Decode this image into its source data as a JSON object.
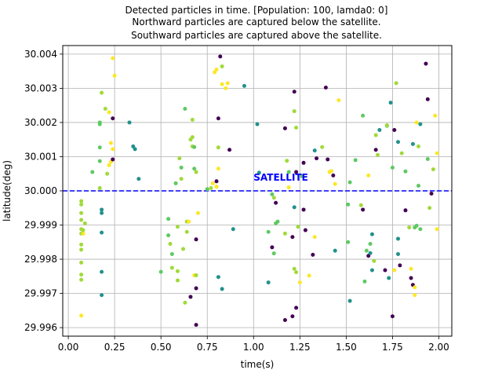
{
  "chart_data": {
    "type": "scatter",
    "title_lines": [
      "Detected particles in time. [Population: 100, lamda0: 0]",
      "Northward particles are captured below the satellite.",
      "Southward particles are captured above the satellite."
    ],
    "xlabel": "time(s)",
    "ylabel": "latitude(deg)",
    "xlim": [
      -0.03,
      2.07
    ],
    "ylim": [
      29.99575,
      30.00425
    ],
    "xticks": [
      "0.00",
      "0.25",
      "0.50",
      "0.75",
      "1.00",
      "1.25",
      "1.50",
      "1.75",
      "2.00"
    ],
    "yticks": [
      "29.996",
      "29.997",
      "29.998",
      "29.999",
      "30.000",
      "30.001",
      "30.002",
      "30.003",
      "30.004"
    ],
    "grid": true,
    "reference_line": {
      "y": 30.0,
      "label": "SATELLITE",
      "label_x": 1.0,
      "label_y": 30.0003,
      "color": "#0000ff",
      "style": "dashed"
    },
    "colormap": [
      "#440154",
      "#21918c",
      "#5ec962",
      "#a0da39",
      "#fde725"
    ],
    "points": [
      [
        0.07,
        29.99635,
        4
      ],
      [
        0.07,
        29.9974,
        3
      ],
      [
        0.07,
        29.99755,
        3
      ],
      [
        0.07,
        29.9979,
        3
      ],
      [
        0.07,
        29.99828,
        3
      ],
      [
        0.07,
        29.99843,
        3
      ],
      [
        0.07,
        29.99875,
        3
      ],
      [
        0.07,
        29.99888,
        3
      ],
      [
        0.07,
        29.99915,
        3
      ],
      [
        0.07,
        29.99935,
        3
      ],
      [
        0.07,
        29.9996,
        3
      ],
      [
        0.07,
        29.9997,
        3
      ],
      [
        0.08,
        29.99875,
        4
      ],
      [
        0.08,
        29.99885,
        3
      ],
      [
        0.09,
        29.99905,
        3
      ],
      [
        0.13,
        30.00055,
        2
      ],
      [
        0.17,
        30.00008,
        3
      ],
      [
        0.17,
        30.00087,
        2
      ],
      [
        0.17,
        30.00127,
        2
      ],
      [
        0.17,
        30.00195,
        2
      ],
      [
        0.17,
        30.002,
        2
      ],
      [
        0.18,
        30.00287,
        3
      ],
      [
        0.18,
        29.99945,
        1
      ],
      [
        0.18,
        29.99935,
        1
      ],
      [
        0.18,
        29.99878,
        1
      ],
      [
        0.18,
        29.99763,
        1
      ],
      [
        0.18,
        29.99695,
        1
      ],
      [
        0.2,
        30.0024,
        3
      ],
      [
        0.21,
        30.0005,
        3
      ],
      [
        0.22,
        30.0023,
        4
      ],
      [
        0.22,
        30.00075,
        4
      ],
      [
        0.23,
        30.00085,
        4
      ],
      [
        0.23,
        30.0014,
        4
      ],
      [
        0.24,
        30.00212,
        0
      ],
      [
        0.24,
        30.00122,
        4
      ],
      [
        0.24,
        30.00092,
        0
      ],
      [
        0.24,
        30.00388,
        4
      ],
      [
        0.25,
        30.00337,
        4
      ],
      [
        0.33,
        30.002,
        1
      ],
      [
        0.35,
        30.0013,
        1
      ],
      [
        0.36,
        30.00122,
        1
      ],
      [
        0.38,
        30.00035,
        1
      ],
      [
        0.5,
        29.99763,
        2
      ],
      [
        0.54,
        29.99918,
        2
      ],
      [
        0.54,
        29.9987,
        2
      ],
      [
        0.55,
        29.99845,
        3
      ],
      [
        0.56,
        29.99815,
        2
      ],
      [
        0.56,
        29.99775,
        3
      ],
      [
        0.58,
        30.00022,
        2
      ],
      [
        0.59,
        29.99895,
        3
      ],
      [
        0.59,
        29.99765,
        3
      ],
      [
        0.59,
        29.99738,
        3
      ],
      [
        0.6,
        30.00095,
        3
      ],
      [
        0.61,
        30.00068,
        2
      ],
      [
        0.61,
        30.00035,
        3
      ],
      [
        0.62,
        29.9983,
        3
      ],
      [
        0.63,
        29.99673,
        3
      ],
      [
        0.63,
        30.0024,
        2
      ],
      [
        0.64,
        29.9988,
        3
      ],
      [
        0.64,
        29.9991,
        3
      ],
      [
        0.65,
        29.9991,
        4
      ],
      [
        0.66,
        29.9969,
        0
      ],
      [
        0.66,
        30.0015,
        3
      ],
      [
        0.67,
        30.00157,
        3
      ],
      [
        0.67,
        30.0013,
        3
      ],
      [
        0.67,
        30.00208,
        3
      ],
      [
        0.68,
        30.00128,
        2
      ],
      [
        0.68,
        29.99753,
        4
      ],
      [
        0.68,
        30.00065,
        2
      ],
      [
        0.69,
        30.00055,
        3
      ],
      [
        0.69,
        29.99858,
        0
      ],
      [
        0.69,
        29.99608,
        0
      ],
      [
        0.69,
        29.99753,
        3
      ],
      [
        0.69,
        29.99715,
        0
      ],
      [
        0.7,
        29.99935,
        4
      ],
      [
        0.75,
        30.00005,
        2
      ],
      [
        0.77,
        30.00008,
        3
      ],
      [
        0.78,
        30.00022,
        4
      ],
      [
        0.79,
        30.00347,
        4
      ],
      [
        0.8,
        30.00355,
        4
      ],
      [
        0.8,
        30.00028,
        0
      ],
      [
        0.8,
        30.00012,
        3
      ],
      [
        0.8,
        30.00012,
        4
      ],
      [
        0.81,
        30.00212,
        0
      ],
      [
        0.81,
        30.00127,
        3
      ],
      [
        0.81,
        29.99748,
        1
      ],
      [
        0.81,
        30.00065,
        4
      ],
      [
        0.82,
        30.00393,
        0
      ],
      [
        0.83,
        30.00364,
        3
      ],
      [
        0.83,
        30.00312,
        4
      ],
      [
        0.83,
        29.99713,
        1
      ],
      [
        0.85,
        30.003,
        4
      ],
      [
        0.86,
        30.00315,
        4
      ],
      [
        0.87,
        30.0012,
        0
      ],
      [
        0.89,
        29.99888,
        1
      ],
      [
        0.95,
        30.00307,
        1
      ],
      [
        1.02,
        30.00195,
        1
      ],
      [
        1.03,
        30.00053,
        1
      ],
      [
        1.08,
        29.9988,
        2
      ],
      [
        1.08,
        29.99732,
        1
      ],
      [
        1.1,
        29.99835,
        0
      ],
      [
        1.1,
        29.9999,
        2
      ],
      [
        1.11,
        29.9998,
        3
      ],
      [
        1.11,
        29.99817,
        2
      ],
      [
        1.12,
        29.99905,
        2
      ],
      [
        1.12,
        29.99965,
        0
      ],
      [
        1.13,
        29.9991,
        2
      ],
      [
        1.17,
        29.99622,
        0
      ],
      [
        1.17,
        29.99875,
        3
      ],
      [
        1.17,
        30.00183,
        0
      ],
      [
        1.18,
        30.00088,
        3
      ],
      [
        1.19,
        30.00055,
        2
      ],
      [
        1.19,
        30.0001,
        4
      ],
      [
        1.21,
        29.99633,
        0
      ],
      [
        1.21,
        29.99865,
        0
      ],
      [
        1.22,
        29.99952,
        1
      ],
      [
        1.22,
        30.0029,
        0
      ],
      [
        1.22,
        30.00233,
        3
      ],
      [
        1.22,
        29.99772,
        3
      ],
      [
        1.23,
        30.00185,
        3
      ],
      [
        1.23,
        30.00055,
        0
      ],
      [
        1.23,
        29.99762,
        3
      ],
      [
        1.23,
        29.99658,
        0
      ],
      [
        1.24,
        29.99895,
        3
      ],
      [
        1.25,
        29.99732,
        4
      ],
      [
        1.26,
        30.00043,
        2
      ],
      [
        1.27,
        30.00082,
        0
      ],
      [
        1.27,
        29.99945,
        0
      ],
      [
        1.28,
        29.99885,
        0
      ],
      [
        1.3,
        29.99752,
        4
      ],
      [
        1.32,
        29.99813,
        0
      ],
      [
        1.33,
        30.00118,
        1
      ],
      [
        1.33,
        29.99865,
        4
      ],
      [
        1.34,
        30.00095,
        0
      ],
      [
        1.37,
        30.00128,
        3
      ],
      [
        1.39,
        30.00302,
        0
      ],
      [
        1.4,
        30.00092,
        0
      ],
      [
        1.41,
        30.00055,
        4
      ],
      [
        1.42,
        30.00058,
        4
      ],
      [
        1.43,
        30.00045,
        0
      ],
      [
        1.44,
        30.0002,
        4
      ],
      [
        1.44,
        29.99825,
        1
      ],
      [
        1.46,
        30.00265,
        4
      ],
      [
        1.51,
        29.9985,
        2
      ],
      [
        1.51,
        29.9996,
        2
      ],
      [
        1.52,
        30.00025,
        2
      ],
      [
        1.52,
        29.99678,
        1
      ],
      [
        1.55,
        30.0009,
        2
      ],
      [
        1.58,
        29.99958,
        3
      ],
      [
        1.59,
        30.0022,
        2
      ],
      [
        1.59,
        29.99945,
        0
      ],
      [
        1.6,
        29.99735,
        2
      ],
      [
        1.61,
        29.99825,
        2
      ],
      [
        1.62,
        29.9981,
        0
      ],
      [
        1.62,
        30.00045,
        4
      ],
      [
        1.63,
        29.99845,
        2
      ],
      [
        1.63,
        29.99818,
        1
      ],
      [
        1.64,
        29.99873,
        1
      ],
      [
        1.64,
        29.99768,
        1
      ],
      [
        1.65,
        29.99795,
        3
      ],
      [
        1.66,
        30.00163,
        3
      ],
      [
        1.66,
        30.0012,
        0
      ],
      [
        1.67,
        30.00105,
        3
      ],
      [
        1.68,
        30.00178,
        1
      ],
      [
        1.71,
        29.99768,
        0
      ],
      [
        1.72,
        30.0019,
        2
      ],
      [
        1.72,
        30.00192,
        3
      ],
      [
        1.73,
        29.99745,
        1
      ],
      [
        1.74,
        30.00258,
        1
      ],
      [
        1.75,
        30.00068,
        2
      ],
      [
        1.75,
        29.99633,
        0
      ],
      [
        1.76,
        29.99768,
        4
      ],
      [
        1.76,
        30.00178,
        0
      ],
      [
        1.77,
        30.00315,
        3
      ],
      [
        1.78,
        30.00143,
        1
      ],
      [
        1.78,
        29.9986,
        1
      ],
      [
        1.78,
        29.99815,
        1
      ],
      [
        1.79,
        29.99782,
        0
      ],
      [
        1.8,
        30.0011,
        3
      ],
      [
        1.82,
        29.99943,
        0
      ],
      [
        1.82,
        30.00057,
        2
      ],
      [
        1.84,
        29.99893,
        3
      ],
      [
        1.85,
        29.99772,
        4
      ],
      [
        1.85,
        29.99745,
        0
      ],
      [
        1.86,
        29.99725,
        0
      ],
      [
        1.86,
        30.00137,
        1
      ],
      [
        1.87,
        29.99893,
        2
      ],
      [
        1.87,
        29.99718,
        4
      ],
      [
        1.87,
        29.99695,
        4
      ],
      [
        1.88,
        29.99898,
        2
      ],
      [
        1.88,
        30.002,
        4
      ],
      [
        1.89,
        30.0013,
        3
      ],
      [
        1.89,
        30.00015,
        2
      ],
      [
        1.9,
        29.99888,
        2
      ],
      [
        1.9,
        30.00195,
        1
      ],
      [
        1.93,
        30.00372,
        0
      ],
      [
        1.94,
        30.00268,
        0
      ],
      [
        1.94,
        30.00093,
        2
      ],
      [
        1.95,
        29.9995,
        3
      ],
      [
        1.96,
        29.99992,
        0
      ],
      [
        1.97,
        30.00063,
        3
      ],
      [
        1.98,
        30.0022,
        4
      ],
      [
        1.99,
        30.0011,
        4
      ],
      [
        1.99,
        29.99888,
        4
      ]
    ]
  }
}
